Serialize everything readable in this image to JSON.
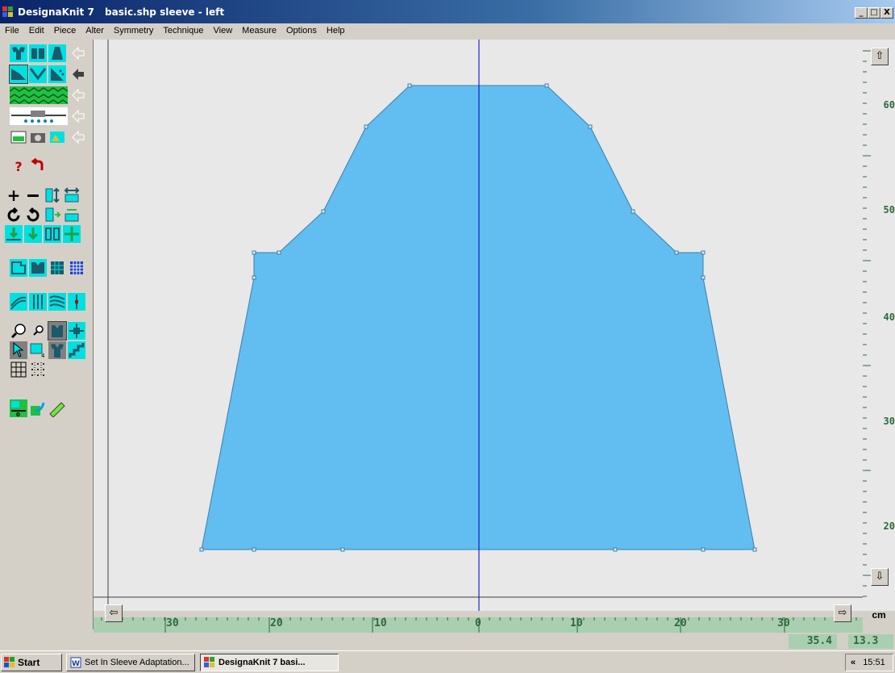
{
  "window": {
    "app_title": "DesignaKnit 7",
    "doc_title": "basic.shp  sleeve - left",
    "minimize": "_",
    "maximize": "□",
    "close": "X"
  },
  "menu": [
    "File",
    "Edit",
    "Piece",
    "Alter",
    "Symmetry",
    "Technique",
    "View",
    "Measure",
    "Options",
    "Help"
  ],
  "ruler_right": {
    "labels": [
      "60",
      "50",
      "40",
      "30",
      "20"
    ],
    "up_icon": "up-arrow-icon",
    "down_icon": "down-arrow-icon"
  },
  "ruler_bottom": {
    "labels": [
      "30",
      "20",
      "10",
      "0",
      "10",
      "20",
      "30"
    ],
    "unit": "cm",
    "left_icon": "left-arrow-icon",
    "right_icon": "right-arrow-icon"
  },
  "status": {
    "x_value": "35.4",
    "y_value": "13.3"
  },
  "taskbar": {
    "start": "Start",
    "items": [
      "Set In Sleeve Adaptation...",
      "DesignaKnit 7     basi..."
    ],
    "tray_chevron": "«",
    "clock": "15:51"
  },
  "colors": {
    "piece_fill": "#62bdf0",
    "piece_stroke": "#3a7fae",
    "center_line": "#0000cc",
    "ruler_green": "#a9cfb0",
    "ruler_text": "#2d6a3a",
    "canvas_bg": "#e8e8e8"
  }
}
